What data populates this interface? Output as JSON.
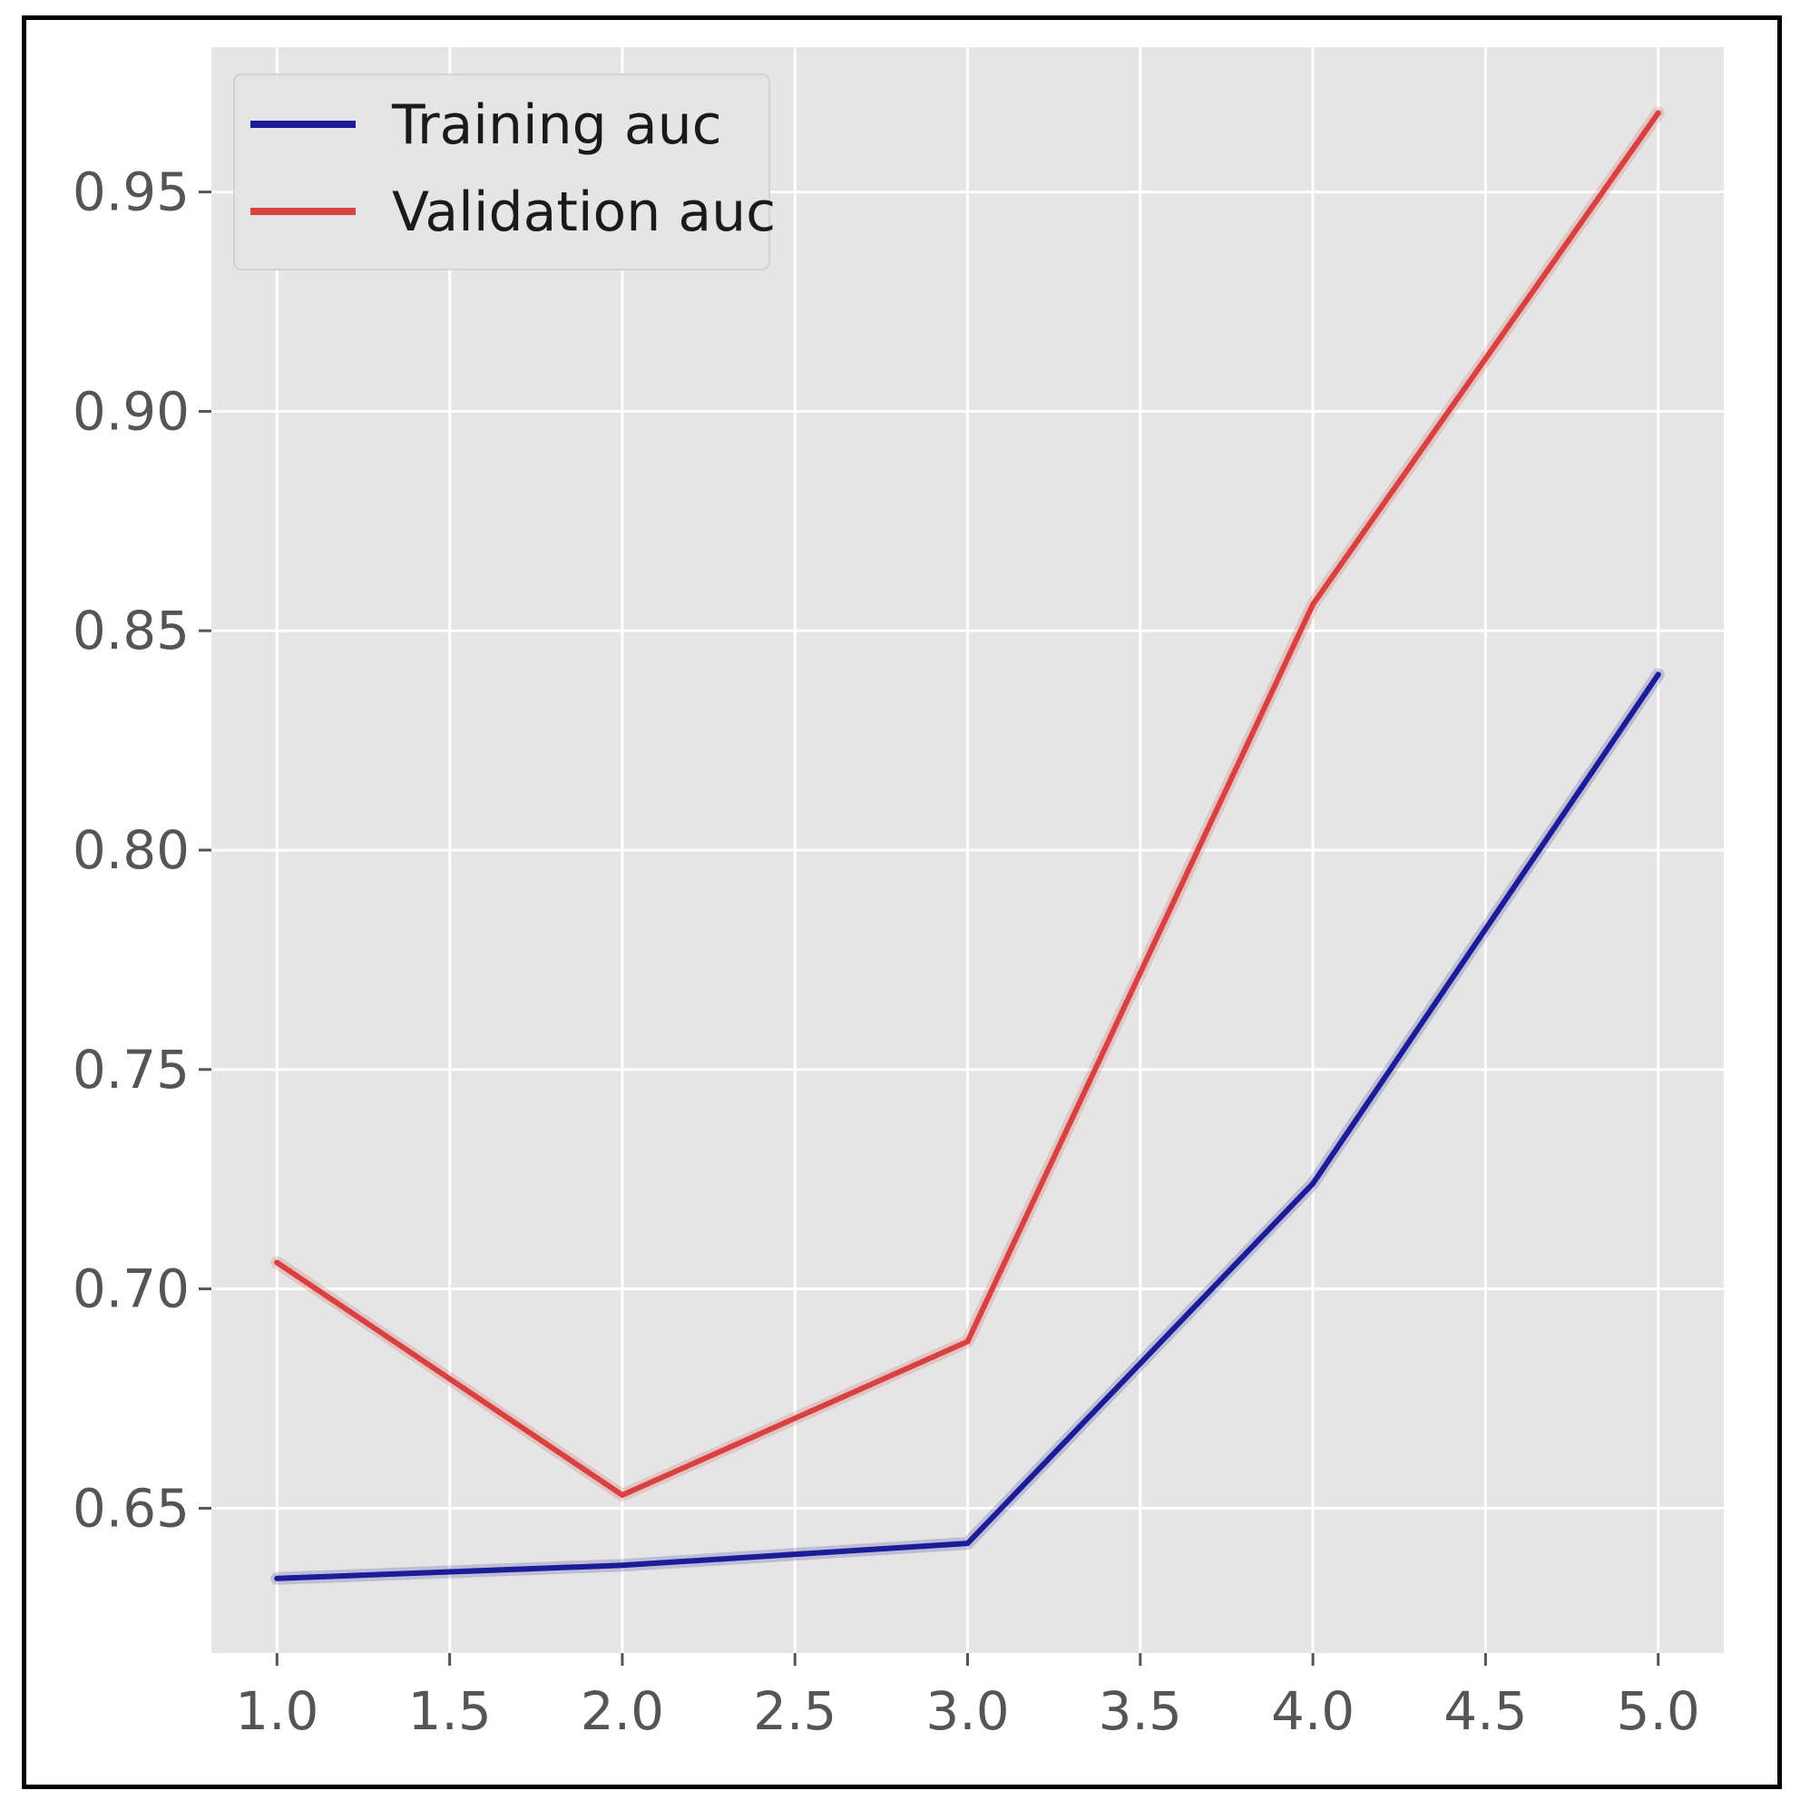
{
  "chart_data": {
    "type": "line",
    "title": "",
    "xlabel": "",
    "ylabel": "",
    "xlim": [
      0.81,
      5.19
    ],
    "ylim": [
      0.617,
      0.983
    ],
    "x_ticks": [
      "1.0",
      "1.5",
      "2.0",
      "2.5",
      "3.0",
      "3.5",
      "4.0",
      "4.5",
      "5.0"
    ],
    "y_ticks": [
      "0.65",
      "0.70",
      "0.75",
      "0.80",
      "0.85",
      "0.90",
      "0.95"
    ],
    "grid": true,
    "legend_position": "upper-left",
    "x": [
      1,
      2,
      3,
      4,
      5
    ],
    "series": [
      {
        "name": "Training auc",
        "color": "#1c1c99",
        "values": [
          0.634,
          0.637,
          0.642,
          0.724,
          0.84
        ]
      },
      {
        "name": "Validation auc",
        "color": "#d94040",
        "values": [
          0.706,
          0.653,
          0.688,
          0.856,
          0.968
        ]
      }
    ],
    "colors": {
      "plot_background": "#e5e5e5",
      "grid": "#ffffff",
      "tick_text": "#555555"
    }
  }
}
